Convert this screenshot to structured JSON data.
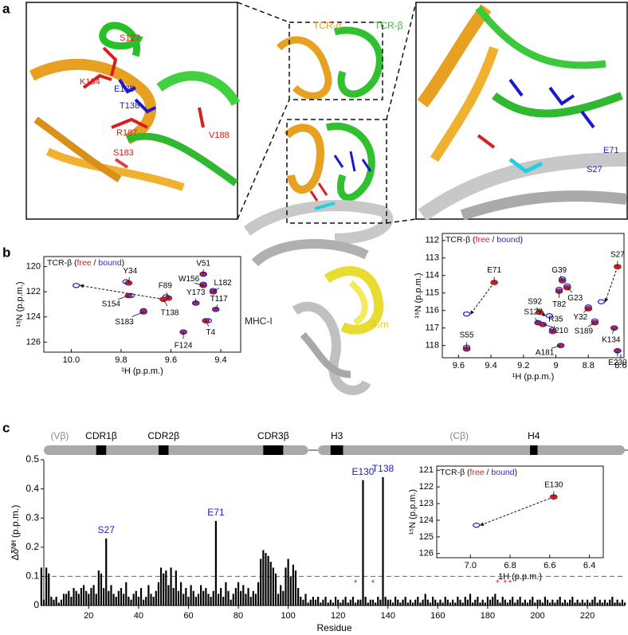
{
  "panel_labels": [
    "a",
    "b",
    "c"
  ],
  "zoom_left": {
    "labels": [
      {
        "text": "S127",
        "color": "#d62020"
      },
      {
        "text": "K134",
        "color": "#d62020"
      },
      {
        "text": "E130",
        "color": "#1a1acc"
      },
      {
        "text": "T138",
        "color": "#1a1acc"
      },
      {
        "text": "R187",
        "color": "#d62020"
      },
      {
        "text": "V188",
        "color": "#d62020"
      },
      {
        "text": "S183",
        "color": "#d62020"
      }
    ]
  },
  "zoom_right": {
    "labels": [
      {
        "text": "E71",
        "color": "#1a1acc"
      },
      {
        "text": "S27",
        "color": "#1a1acc"
      }
    ]
  },
  "structure": {
    "labels": [
      {
        "text": "TCR-α",
        "color": "#e8a020"
      },
      {
        "text": "TCR-β",
        "color": "#2ec02e"
      },
      {
        "text": "MHC-I",
        "color": "#222222"
      },
      {
        "text": "β₂m",
        "color": "#e0d020"
      }
    ]
  },
  "spectrum_left": {
    "type": "scatter",
    "title": [
      "TCR-β (",
      "free",
      " / ",
      "bound",
      ")"
    ],
    "free_color": "#d62020",
    "bound_color": "#2a2acc",
    "xlabel": "¹H (p.p.m.)",
    "ylabel": "¹⁵N (p.p.m.)",
    "xlim": [
      10.11,
      9.32
    ],
    "ylim": [
      119.2,
      126.8
    ],
    "xticks": [
      {
        "value": 10,
        "label": "10.0"
      },
      9.8,
      9.6,
      9.4
    ],
    "yticks": [
      120,
      122,
      124,
      126
    ],
    "peaks": [
      {
        "label": "V51",
        "free": {
          "h": 9.47,
          "n": 120.6
        },
        "bound": {
          "h": 9.47,
          "n": 120.6
        }
      },
      {
        "label": "Y34",
        "free": {
          "h": 9.77,
          "n": 121.3
        },
        "bound": {
          "h": 9.78,
          "n": 121.2
        }
      },
      {
        "label": "F89",
        "free": {
          "h": 9.61,
          "n": 122.5
        },
        "bound": {
          "h": 9.62,
          "n": 122.4
        }
      },
      {
        "label": "W156",
        "free": {
          "h": 9.47,
          "n": 121.5
        },
        "bound": {
          "h": 9.47,
          "n": 121.4
        }
      },
      {
        "label": "L182",
        "free": {
          "h": 9.43,
          "n": 122.0
        },
        "bound": {
          "h": 9.43,
          "n": 121.9
        }
      },
      {
        "label": "S154",
        "free": {
          "h": 9.77,
          "n": 122.3
        },
        "bound": {
          "h": 9.76,
          "n": 122.3
        }
      },
      {
        "label": "T138",
        "free": {
          "h": 9.63,
          "n": 122.6
        },
        "bound": {
          "h": 9.98,
          "n": 121.5
        }
      },
      {
        "label": "Y173",
        "free": {
          "h": 9.5,
          "n": 122.9
        },
        "bound": {
          "h": 9.5,
          "n": 122.9
        }
      },
      {
        "label": "T117",
        "free": {
          "h": 9.42,
          "n": 123.4
        },
        "bound": {
          "h": 9.42,
          "n": 123.4
        }
      },
      {
        "label": "S183",
        "free": {
          "h": 9.71,
          "n": 123.6
        },
        "bound": {
          "h": 9.71,
          "n": 123.5
        }
      },
      {
        "label": "T4",
        "free": {
          "h": 9.46,
          "n": 124.3
        },
        "bound": {
          "h": 9.45,
          "n": 124.3
        }
      },
      {
        "label": "F124",
        "free": {
          "h": 9.55,
          "n": 125.2
        },
        "bound": {
          "h": 9.55,
          "n": 125.2
        }
      }
    ]
  },
  "spectrum_right": {
    "type": "scatter",
    "title": [
      "TCR-β (",
      "free",
      " / ",
      "bound",
      ")"
    ],
    "free_color": "#d62020",
    "bound_color": "#2a2acc",
    "xlabel": "¹H (p.p.m.)",
    "ylabel": "¹⁵N (p.p.m.)",
    "xlim": [
      9.7,
      8.58
    ],
    "ylim": [
      111.6,
      118.7
    ],
    "xticks": [
      9.6,
      9.4,
      9.2,
      9.0,
      8.8,
      8.6
    ],
    "yticks": [
      112,
      113,
      114,
      115,
      116,
      117,
      118
    ],
    "peaks": [
      {
        "label": "E71",
        "free": {
          "h": 9.38,
          "n": 114.4
        },
        "bound": {
          "h": 9.55,
          "n": 116.2
        }
      },
      {
        "label": "S27",
        "free": {
          "h": 8.62,
          "n": 113.5
        },
        "bound": {
          "h": 8.72,
          "n": 115.5
        }
      },
      {
        "label": "G39",
        "free": {
          "h": 8.96,
          "n": 114.3
        },
        "bound": {
          "h": 8.96,
          "n": 114.2
        }
      },
      {
        "label": "G23",
        "free": {
          "h": 8.93,
          "n": 114.7
        },
        "bound": {
          "h": 8.93,
          "n": 114.6
        }
      },
      {
        "label": "T82",
        "free": {
          "h": 8.98,
          "n": 114.9
        },
        "bound": {
          "h": 8.98,
          "n": 114.8
        }
      },
      {
        "label": "S92",
        "free": {
          "h": 9.1,
          "n": 116.1
        },
        "bound": {
          "h": 9.04,
          "n": 116.3
        }
      },
      {
        "label": "S127",
        "free": {
          "h": 9.11,
          "n": 116.7
        },
        "bound": {
          "h": 9.11,
          "n": 116.7
        }
      },
      {
        "label": "S210",
        "free": {
          "h": 9.08,
          "n": 116.8
        },
        "bound": {
          "h": 9.08,
          "n": 116.8
        }
      },
      {
        "label": "R35",
        "free": {
          "h": 9.02,
          "n": 117.2
        },
        "bound": {
          "h": 9.02,
          "n": 117.1
        }
      },
      {
        "label": "A181",
        "free": {
          "h": 8.97,
          "n": 118.0
        },
        "bound": {
          "h": 8.97,
          "n": 118.0
        }
      },
      {
        "label": "Y32",
        "free": {
          "h": 8.8,
          "n": 115.9
        },
        "bound": {
          "h": 8.8,
          "n": 115.8
        }
      },
      {
        "label": "S189",
        "free": {
          "h": 8.76,
          "n": 116.7
        },
        "bound": {
          "h": 8.76,
          "n": 116.6
        }
      },
      {
        "label": "K134",
        "free": {
          "h": 8.64,
          "n": 117.0
        },
        "bound": {
          "h": 8.64,
          "n": 117.0
        }
      },
      {
        "label": "E230",
        "free": {
          "h": 8.62,
          "n": 118.3
        },
        "bound": {
          "h": 8.62,
          "n": 118.3
        }
      },
      {
        "label": "S55",
        "free": {
          "h": 9.55,
          "n": 118.2
        },
        "bound": {
          "h": 9.55,
          "n": 118.1
        }
      }
    ]
  },
  "spectrum_inset": {
    "type": "scatter",
    "title": [
      "TCR-β (",
      "free",
      " / ",
      "bound",
      ")"
    ],
    "free_color": "#d62020",
    "bound_color": "#2a2acc",
    "xlabel": "1H (p.p.m.)",
    "ylabel": "¹⁵N (p.p.m.)",
    "xlim": [
      7.17,
      6.33
    ],
    "ylim": [
      120.75,
      126.25
    ],
    "xticks": [
      {
        "value": 7,
        "label": "7.0"
      },
      6.8,
      6.6,
      6.4
    ],
    "yticks": [
      121,
      122,
      123,
      124,
      125,
      126
    ],
    "peaks": [
      {
        "label": "E130",
        "free": {
          "h": 6.58,
          "n": 122.6
        },
        "bound": {
          "h": 6.97,
          "n": 124.3
        }
      }
    ]
  },
  "chart_data": {
    "type": "bar",
    "xlabel": "Residue",
    "ylabel": "Δδᴺᴴ (p.p.m.)",
    "color": "#000000",
    "xlim": [
      2,
      235
    ],
    "ylim": [
      0,
      0.5
    ],
    "xticks": [
      20,
      40,
      60,
      80,
      100,
      120,
      140,
      160,
      180,
      200,
      220
    ],
    "yticks": [
      0,
      0.1,
      0.2,
      0.3,
      0.4,
      0.5
    ],
    "threshold": 0.1,
    "domains": [
      {
        "label": "(Vβ)",
        "start": 0,
        "end": 108
      },
      {
        "label": "(Cβ)",
        "start": 112,
        "end": 235
      }
    ],
    "regions": [
      {
        "label": "CDR1β",
        "start": 23,
        "end": 27
      },
      {
        "label": "CDR2β",
        "start": 48,
        "end": 52
      },
      {
        "label": "CDR3β",
        "start": 90,
        "end": 98
      },
      {
        "label": "H3",
        "start": 117,
        "end": 122
      },
      {
        "label": "H4",
        "start": 197,
        "end": 200
      }
    ],
    "annotations": [
      {
        "text": "S27",
        "residue": 27
      },
      {
        "text": "E71",
        "residue": 71
      },
      {
        "text": "E130",
        "residue": 130
      },
      {
        "text": "T138",
        "residue": 138
      }
    ],
    "annotation_color": "#1a1acc",
    "asterisks": {
      "text": "*",
      "residues": [
        127,
        134,
        184,
        187,
        189
      ],
      "color": "#d62020"
    },
    "x": [
      1,
      2,
      3,
      4,
      5,
      6,
      7,
      8,
      9,
      10,
      11,
      12,
      13,
      14,
      15,
      16,
      17,
      18,
      19,
      20,
      21,
      22,
      23,
      24,
      25,
      26,
      27,
      28,
      29,
      30,
      31,
      32,
      33,
      34,
      35,
      36,
      37,
      38,
      39,
      40,
      41,
      42,
      43,
      44,
      45,
      46,
      47,
      48,
      49,
      50,
      51,
      52,
      53,
      54,
      55,
      56,
      57,
      58,
      59,
      60,
      61,
      62,
      63,
      64,
      65,
      66,
      67,
      68,
      69,
      70,
      71,
      72,
      73,
      74,
      75,
      76,
      77,
      78,
      79,
      80,
      81,
      82,
      83,
      84,
      85,
      86,
      87,
      88,
      89,
      90,
      91,
      92,
      93,
      94,
      95,
      96,
      97,
      98,
      99,
      100,
      101,
      102,
      103,
      104,
      105,
      106,
      107,
      108,
      109,
      110,
      111,
      112,
      113,
      114,
      115,
      116,
      117,
      118,
      119,
      120,
      121,
      122,
      123,
      124,
      125,
      126,
      127,
      128,
      129,
      130,
      131,
      132,
      133,
      134,
      135,
      136,
      137,
      138,
      139,
      140,
      141,
      142,
      143,
      144,
      145,
      146,
      147,
      148,
      149,
      150,
      151,
      152,
      153,
      154,
      155,
      156,
      157,
      158,
      159,
      160,
      161,
      162,
      163,
      164,
      165,
      166,
      167,
      168,
      169,
      170,
      171,
      172,
      173,
      174,
      175,
      176,
      177,
      178,
      179,
      180,
      181,
      182,
      183,
      184,
      185,
      186,
      187,
      188,
      189,
      190,
      191,
      192,
      193,
      194,
      195,
      196,
      197,
      198,
      199,
      200,
      201,
      202,
      203,
      204,
      205,
      206,
      207,
      208,
      209,
      210,
      211,
      212,
      213,
      214,
      215,
      216,
      217,
      218,
      219,
      220,
      221,
      222,
      223,
      224,
      225,
      226,
      227,
      228,
      229,
      230,
      231,
      232,
      233,
      234,
      235
    ],
    "values": [
      0.13,
      0.02,
      0.13,
      0.11,
      0.03,
      0.02,
      0.03,
      0.01,
      0.02,
      0.04,
      0.04,
      0.05,
      0.03,
      0.06,
      0.05,
      0.04,
      0.06,
      0.07,
      0.05,
      0.04,
      0.06,
      0.07,
      0.04,
      0.12,
      0.11,
      0.06,
      0.23,
      0.05,
      0.07,
      0.04,
      0.03,
      0.05,
      0.06,
      0.04,
      0.08,
      0.03,
      0.02,
      0.04,
      0.05,
      0.03,
      0.06,
      0.02,
      0.03,
      0.07,
      0.04,
      0.03,
      0.05,
      0.08,
      0.13,
      0.11,
      0.12,
      0.07,
      0.13,
      0.06,
      0.12,
      0.05,
      0.08,
      0.04,
      0.06,
      0.03,
      0.07,
      0.05,
      0.03,
      0.04,
      0.07,
      0.05,
      0.06,
      0.04,
      0.03,
      0.05,
      0.29,
      0.04,
      0.06,
      0.03,
      0.08,
      0.05,
      0.02,
      0.04,
      0.06,
      0.08,
      0.05,
      0.07,
      0.04,
      0.06,
      0.03,
      0.05,
      0.04,
      0.08,
      0.16,
      0.19,
      0.18,
      0.17,
      0.15,
      0.13,
      0.11,
      0.04,
      0.07,
      0.05,
      0.13,
      0.16,
      0.1,
      0.14,
      0.12,
      0.06,
      0.03,
      0.02,
      0.04,
      0.01,
      0.02,
      0.03,
      0.02,
      0.03,
      0.01,
      0.02,
      0.03,
      0.01,
      0.02,
      0.01,
      0.03,
      0.02,
      0.01,
      0.02,
      0.03,
      0.01,
      0.02,
      0.03,
      0.01,
      0.02,
      0.02,
      0.43,
      0.03,
      0.01,
      0.02,
      0.02,
      0.01,
      0.03,
      0.02,
      0.44,
      0.03,
      0.02,
      0.02,
      0.01,
      0.03,
      0.02,
      0.01,
      0.02,
      0.03,
      0.01,
      0.02,
      0.01,
      0.02,
      0.03,
      0.01,
      0.02,
      0.04,
      0.02,
      0.01,
      0.03,
      0.02,
      0.01,
      0.02,
      0.01,
      0.03,
      0.02,
      0.01,
      0.02,
      0.01,
      0.03,
      0.02,
      0.01,
      0.03,
      0.02,
      0.04,
      0.01,
      0.02,
      0.03,
      0.01,
      0.02,
      0.01,
      0.03,
      0.02,
      0.03,
      0.04,
      0.02,
      0.01,
      0.03,
      0.02,
      0.01,
      0.02,
      0.03,
      0.01,
      0.02,
      0.03,
      0.01,
      0.02,
      0.01,
      0.02,
      0.03,
      0.01,
      0.02,
      0.02,
      0.01,
      0.03,
      0.02,
      0.01,
      0.02,
      0.01,
      0.02,
      0.03,
      0.01,
      0.02,
      0.01,
      0.02,
      0.03,
      0.01,
      0.02,
      0.01,
      0.02,
      0.01,
      0.02,
      0.01,
      0.02,
      0.03,
      0.01,
      0.02,
      0.01,
      0.02,
      0.01,
      0.02,
      0.03,
      0.01,
      0.02,
      0.01,
      0.02,
      0.01
    ]
  }
}
